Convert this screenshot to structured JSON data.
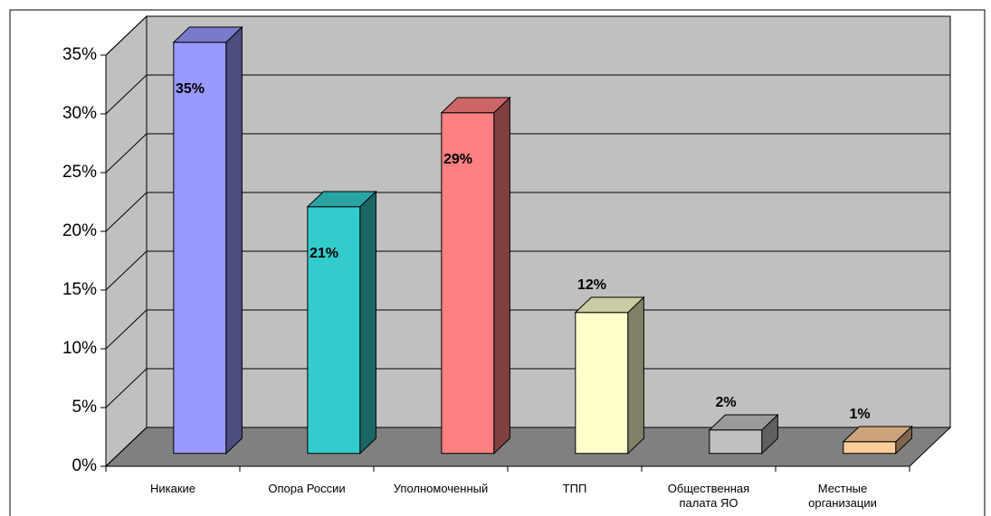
{
  "chart_data": {
    "type": "bar3d",
    "categories": [
      "Никакие",
      "Опора России",
      "Уполномоченный",
      "ТПП",
      "Общественная палата ЯО",
      "Местные организации"
    ],
    "values": [
      35,
      21,
      29,
      12,
      2,
      1
    ],
    "value_labels": [
      "35%",
      "21%",
      "29%",
      "12%",
      "2%",
      "1%"
    ],
    "colors": [
      "#9999ff",
      "#33cccc",
      "#ff8080",
      "#ffffcc",
      "#c0c0c0",
      "#ffcc99"
    ],
    "ylim": [
      0,
      35
    ],
    "yticks": [
      {
        "value": 0,
        "label": "0%"
      },
      {
        "value": 5,
        "label": "5%"
      },
      {
        "value": 10,
        "label": "10%"
      },
      {
        "value": 15,
        "label": "15%"
      },
      {
        "value": 20,
        "label": "20%"
      },
      {
        "value": 25,
        "label": "25%"
      },
      {
        "value": 30,
        "label": "30%"
      },
      {
        "value": 35,
        "label": "35%"
      }
    ],
    "grid": true
  }
}
